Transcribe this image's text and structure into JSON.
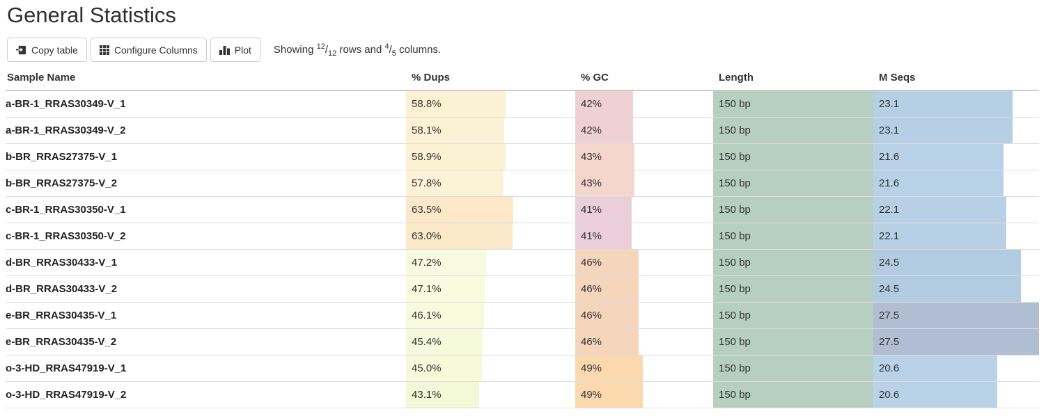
{
  "page_title": "General Statistics",
  "toolbar": {
    "copy_label": "Copy table",
    "configure_label": "Configure Columns",
    "plot_label": "Plot",
    "showing": {
      "prefix": "Showing ",
      "rows_shown": "12",
      "slash": "/",
      "rows_total": "12",
      "rows_text": " rows and ",
      "cols_shown": "4",
      "cols_total": "5",
      "cols_text": " columns."
    }
  },
  "colors": {
    "header_border": "#cccccc",
    "row_border": "#dddddd",
    "length_bar": "#b7cfc1"
  },
  "table": {
    "columns": [
      "Sample Name",
      "% Dups",
      "% GC",
      "Length",
      "M Seqs"
    ],
    "mseqs_scale_max": 27.5,
    "rows": [
      {
        "sample": "a-BR-1_RRAS30349-V_1",
        "dups": {
          "text": "58.8%",
          "pct": 58.8,
          "color": "#fbf2d4"
        },
        "gc": {
          "text": "42%",
          "pct": 42,
          "color": "#efd0d5"
        },
        "length": {
          "text": "150 bp",
          "pct": 100,
          "color": "#b7cfc1"
        },
        "mseqs": {
          "text": "23.1",
          "pct": 84.0,
          "color": "#b7cfe5"
        }
      },
      {
        "sample": "a-BR-1_RRAS30349-V_2",
        "dups": {
          "text": "58.1%",
          "pct": 58.1,
          "color": "#fbf2d5"
        },
        "gc": {
          "text": "42%",
          "pct": 42,
          "color": "#efd0d5"
        },
        "length": {
          "text": "150 bp",
          "pct": 100,
          "color": "#b7cfc1"
        },
        "mseqs": {
          "text": "23.1",
          "pct": 84.0,
          "color": "#b7cfe5"
        }
      },
      {
        "sample": "b-BR_RRAS27375-V_1",
        "dups": {
          "text": "58.9%",
          "pct": 58.9,
          "color": "#fbf2d4"
        },
        "gc": {
          "text": "43%",
          "pct": 43,
          "color": "#f4d6cc"
        },
        "length": {
          "text": "150 bp",
          "pct": 100,
          "color": "#b7cfc1"
        },
        "mseqs": {
          "text": "21.6",
          "pct": 78.5,
          "color": "#b9d1e7"
        }
      },
      {
        "sample": "b-BR_RRAS27375-V_2",
        "dups": {
          "text": "57.8%",
          "pct": 57.8,
          "color": "#fcf3d7"
        },
        "gc": {
          "text": "43%",
          "pct": 43,
          "color": "#f4d6cc"
        },
        "length": {
          "text": "150 bp",
          "pct": 100,
          "color": "#b7cfc1"
        },
        "mseqs": {
          "text": "21.6",
          "pct": 78.5,
          "color": "#b9d1e7"
        }
      },
      {
        "sample": "c-BR-1_RRAS30350-V_1",
        "dups": {
          "text": "63.5%",
          "pct": 63.5,
          "color": "#fce8c8"
        },
        "gc": {
          "text": "41%",
          "pct": 41,
          "color": "#eaced9"
        },
        "length": {
          "text": "150 bp",
          "pct": 100,
          "color": "#b7cfc1"
        },
        "mseqs": {
          "text": "22.1",
          "pct": 80.4,
          "color": "#b8d0e6"
        }
      },
      {
        "sample": "c-BR-1_RRAS30350-V_2",
        "dups": {
          "text": "63.0%",
          "pct": 63.0,
          "color": "#fce9c9"
        },
        "gc": {
          "text": "41%",
          "pct": 41,
          "color": "#eaced9"
        },
        "length": {
          "text": "150 bp",
          "pct": 100,
          "color": "#b7cfc1"
        },
        "mseqs": {
          "text": "22.1",
          "pct": 80.4,
          "color": "#b8d0e6"
        }
      },
      {
        "sample": "d-BR_RRAS30433-V_1",
        "dups": {
          "text": "47.2%",
          "pct": 47.2,
          "color": "#f8fbdf"
        },
        "gc": {
          "text": "46%",
          "pct": 46,
          "color": "#f6d5bd"
        },
        "length": {
          "text": "150 bp",
          "pct": 100,
          "color": "#b7cfc1"
        },
        "mseqs": {
          "text": "24.5",
          "pct": 89.1,
          "color": "#b3cbe1"
        }
      },
      {
        "sample": "d-BR_RRAS30433-V_2",
        "dups": {
          "text": "47.1%",
          "pct": 47.1,
          "color": "#f8fbdf"
        },
        "gc": {
          "text": "46%",
          "pct": 46,
          "color": "#f6d5bd"
        },
        "length": {
          "text": "150 bp",
          "pct": 100,
          "color": "#b7cfc1"
        },
        "mseqs": {
          "text": "24.5",
          "pct": 89.1,
          "color": "#b3cbe1"
        }
      },
      {
        "sample": "e-BR_RRAS30435-V_1",
        "dups": {
          "text": "46.1%",
          "pct": 46.1,
          "color": "#f7fadd"
        },
        "gc": {
          "text": "46%",
          "pct": 46,
          "color": "#f6d5bd"
        },
        "length": {
          "text": "150 bp",
          "pct": 100,
          "color": "#b7cfc1"
        },
        "mseqs": {
          "text": "27.5",
          "pct": 100,
          "color": "#b0bdd2"
        }
      },
      {
        "sample": "e-BR_RRAS30435-V_2",
        "dups": {
          "text": "45.4%",
          "pct": 45.4,
          "color": "#f6fadc"
        },
        "gc": {
          "text": "46%",
          "pct": 46,
          "color": "#f6d5bd"
        },
        "length": {
          "text": "150 bp",
          "pct": 100,
          "color": "#b7cfc1"
        },
        "mseqs": {
          "text": "27.5",
          "pct": 100,
          "color": "#b0bdd2"
        }
      },
      {
        "sample": "o-3-HD_RRAS47919-V_1",
        "dups": {
          "text": "45.0%",
          "pct": 45.0,
          "color": "#f6fadb"
        },
        "gc": {
          "text": "49%",
          "pct": 49,
          "color": "#fbd8ae"
        },
        "length": {
          "text": "150 bp",
          "pct": 100,
          "color": "#b7cfc1"
        },
        "mseqs": {
          "text": "20.6",
          "pct": 74.9,
          "color": "#bad2e8"
        }
      },
      {
        "sample": "o-3-HD_RRAS47919-V_2",
        "dups": {
          "text": "43.1%",
          "pct": 43.1,
          "color": "#f3f8d7"
        },
        "gc": {
          "text": "49%",
          "pct": 49,
          "color": "#fbd8ae"
        },
        "length": {
          "text": "150 bp",
          "pct": 100,
          "color": "#b7cfc1"
        },
        "mseqs": {
          "text": "20.6",
          "pct": 74.9,
          "color": "#bad2e8"
        }
      }
    ]
  }
}
